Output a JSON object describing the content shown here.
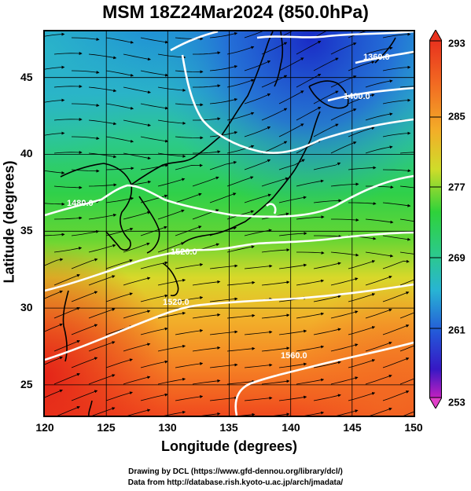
{
  "title": "MSM 18Z24Mar2024 (850.0hPa)",
  "map": {
    "x_axis": {
      "label": "Longitude (degrees)",
      "min": 120,
      "max": 150,
      "ticks": [
        "120",
        "125",
        "130",
        "135",
        "140",
        "145",
        "150"
      ]
    },
    "y_axis": {
      "label": "Latitude  (degrees)",
      "min": 23,
      "max": 48,
      "ticks": [
        "25",
        "30",
        "35",
        "40",
        "45"
      ]
    },
    "contour_labels": [
      "1360.0",
      "1400.0",
      "1480.0",
      "1520.0",
      "1520.0",
      "1560.0"
    ],
    "colorbar": {
      "min": 253,
      "max": 293,
      "labels": [
        "293",
        "285",
        "277",
        "269",
        "261",
        "253"
      ]
    },
    "colors": {
      "warm": "#e8321e",
      "mid": "#22cc22",
      "cold": "#1a2ec8",
      "vmin": "#c020c0"
    }
  },
  "credits": {
    "line1": "Drawing by DCL (https://www.gfd-dennou.org/library/dcl/)",
    "line2": "Data from http://database.rish.kyoto-u.ac.jp/arch/jmadata/"
  }
}
